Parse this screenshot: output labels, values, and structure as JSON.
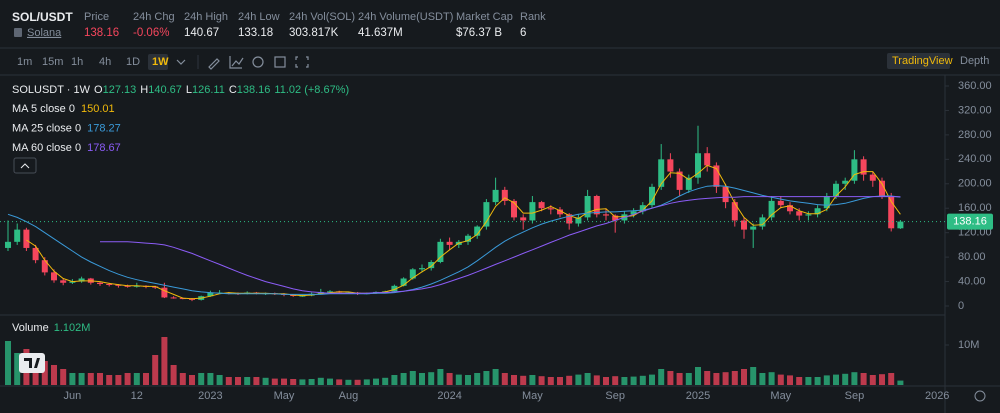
{
  "header": {
    "symbol": "SOL/USDT",
    "name": "Solana",
    "stats": [
      {
        "label": "Price"
      },
      {
        "label": "24h Chg",
        "value": "-0.06%"
      },
      {
        "label": "24h High",
        "value": "140.67"
      },
      {
        "label": "24h Low",
        "value": "133.18"
      },
      {
        "label": "24h Vol(SOL)",
        "value": "303.817K"
      },
      {
        "label": "24h Volume(USDT)",
        "value": "41.637M"
      },
      {
        "label": "Market Cap",
        "value": "$76.37 B"
      },
      {
        "label": "Rank",
        "value": "6"
      }
    ]
  },
  "toolbar": {
    "intervals": [
      "1m",
      "15m",
      "1h",
      "4h",
      "1D",
      "1W"
    ],
    "active": 5,
    "views": [
      "TradingView",
      "Depth"
    ]
  },
  "chart_data": {
    "type": "candlestick",
    "legend": {
      "symbol": "SOLUSDT · 1W",
      "o": "O",
      "h": "H",
      "l": "L",
      "c": "C",
      "change": "11.02 (+8.67%)",
      "volume": "Volume",
      "volume_value": "1.102M"
    },
    "up_color": "#2ebd85",
    "down_color": "#f6465d",
    "categories": [
      null,
      null,
      null,
      null,
      null,
      null,
      null,
      "Jun",
      null,
      null,
      null,
      null,
      null,
      null,
      "12",
      null,
      null,
      null,
      null,
      null,
      null,
      null,
      "2023",
      null,
      null,
      null,
      null,
      null,
      null,
      null,
      "May",
      null,
      null,
      null,
      null,
      null,
      null,
      "Aug",
      null,
      null,
      null,
      null,
      null,
      null,
      null,
      null,
      null,
      null,
      "2024",
      null,
      null,
      null,
      null,
      null,
      null,
      null,
      null,
      "May",
      null,
      null,
      null,
      null,
      null,
      null,
      null,
      null,
      "Sep",
      null,
      null,
      null,
      null,
      null,
      null,
      null,
      null,
      "2025",
      null,
      null,
      null,
      null,
      null,
      null,
      null,
      null,
      "May",
      null,
      null,
      null,
      null,
      null,
      null,
      null,
      "Sep",
      null,
      null,
      null,
      null,
      null,
      null,
      null,
      null,
      "2026"
    ],
    "open": [
      95,
      105,
      125,
      95,
      75,
      55,
      42,
      38,
      40,
      45,
      38,
      36,
      35,
      33,
      32,
      33,
      32,
      30,
      14,
      13,
      12,
      10,
      16,
      22,
      22,
      21,
      20,
      22,
      20,
      21,
      20,
      18,
      17,
      17,
      20,
      23,
      24,
      22,
      22,
      20,
      21,
      23,
      24,
      33,
      45,
      60,
      62,
      72,
      105,
      100,
      105,
      115,
      130,
      170,
      190,
      172,
      145,
      140,
      170,
      160,
      158,
      150,
      135,
      145,
      180,
      150,
      148,
      140,
      150,
      155,
      165,
      195,
      240,
      220,
      190,
      210,
      250,
      230,
      195,
      170,
      140,
      125,
      130,
      145,
      172,
      165,
      155,
      148,
      150,
      160,
      180,
      200,
      205,
      240,
      215,
      205,
      180,
      127.13,
      null,
      null,
      null,
      null
    ],
    "high": [
      140,
      135,
      128,
      100,
      80,
      60,
      45,
      44,
      48,
      46,
      40,
      38,
      36,
      35,
      38,
      34,
      33,
      38,
      16,
      14,
      13,
      17,
      25,
      26,
      23,
      22,
      24,
      23,
      22,
      22,
      21,
      19,
      18,
      22,
      28,
      26,
      25,
      23,
      23,
      22,
      24,
      25,
      35,
      47,
      62,
      68,
      75,
      110,
      112,
      108,
      118,
      132,
      175,
      210,
      195,
      175,
      150,
      180,
      172,
      165,
      162,
      152,
      150,
      190,
      182,
      160,
      150,
      155,
      160,
      170,
      200,
      265,
      250,
      225,
      215,
      295,
      260,
      235,
      200,
      175,
      145,
      135,
      150,
      180,
      180,
      170,
      160,
      155,
      165,
      185,
      205,
      210,
      255,
      245,
      220,
      210,
      185,
      140.67,
      null,
      null,
      null,
      null
    ],
    "low": [
      90,
      100,
      90,
      70,
      50,
      38,
      34,
      36,
      38,
      35,
      33,
      32,
      30,
      30,
      30,
      29,
      28,
      13,
      12,
      11,
      8,
      9,
      15,
      20,
      19,
      18,
      19,
      19,
      18,
      18,
      16,
      15,
      15,
      16,
      19,
      21,
      20,
      20,
      18,
      19,
      20,
      22,
      23,
      32,
      43,
      55,
      58,
      70,
      92,
      95,
      100,
      110,
      125,
      165,
      165,
      140,
      125,
      135,
      155,
      150,
      145,
      125,
      130,
      140,
      145,
      140,
      120,
      135,
      145,
      150,
      160,
      190,
      210,
      180,
      185,
      200,
      220,
      185,
      160,
      130,
      110,
      95,
      125,
      140,
      160,
      150,
      140,
      140,
      145,
      155,
      175,
      190,
      200,
      205,
      195,
      175,
      122,
      126.11,
      null,
      null,
      null,
      null
    ],
    "close": [
      105,
      125,
      95,
      75,
      55,
      42,
      38,
      40,
      45,
      38,
      36,
      35,
      33,
      32,
      33,
      32,
      30,
      14,
      13,
      12,
      10,
      16,
      22,
      22,
      21,
      20,
      22,
      20,
      21,
      20,
      18,
      17,
      17,
      20,
      23,
      24,
      22,
      22,
      20,
      21,
      23,
      24,
      33,
      45,
      60,
      62,
      72,
      105,
      100,
      105,
      115,
      130,
      170,
      190,
      172,
      145,
      140,
      170,
      160,
      158,
      150,
      135,
      145,
      180,
      150,
      148,
      140,
      150,
      155,
      165,
      195,
      240,
      220,
      190,
      210,
      250,
      230,
      195,
      170,
      140,
      125,
      130,
      145,
      172,
      165,
      155,
      148,
      150,
      160,
      180,
      200,
      205,
      240,
      215,
      205,
      180,
      127.13,
      138.16,
      null,
      null,
      null,
      null
    ],
    "volume": [
      11,
      8,
      9,
      7,
      6,
      5,
      4,
      3,
      3,
      3,
      3,
      2.5,
      2.5,
      3,
      3,
      3,
      7.5,
      12,
      5,
      3,
      2.5,
      3,
      3,
      2.5,
      2,
      2,
      2,
      2,
      1.8,
      1.6,
      1.6,
      1.5,
      1.4,
      1.5,
      1.8,
      1.6,
      1.4,
      1.3,
      1.3,
      1.4,
      1.6,
      1.8,
      2.5,
      3,
      3.5,
      3,
      3.2,
      4,
      3,
      2.6,
      2.5,
      3,
      3.5,
      4,
      3,
      2.5,
      2.3,
      2.5,
      2.2,
      2,
      2,
      2.3,
      2.6,
      3,
      2.4,
      2,
      2.2,
      2,
      2.1,
      2.3,
      2.6,
      4,
      3.5,
      3,
      3,
      4.5,
      3.5,
      3,
      3.2,
      3.5,
      4,
      4.5,
      3,
      3.2,
      2.6,
      2.4,
      2,
      2,
      2,
      2.4,
      2.6,
      2.8,
      3.2,
      3,
      2.5,
      2.7,
      3,
      1.102,
      null,
      null,
      null,
      null
    ],
    "ma": [
      {
        "name": "MA 5 close 0",
        "color": "#f0b90b",
        "values": [
          null,
          null,
          108,
          98,
          75,
          57,
          45,
          40,
          41,
          41,
          40,
          37,
          35,
          33,
          33,
          32,
          32,
          25,
          19,
          13,
          12,
          13,
          16,
          20,
          22,
          21,
          21,
          21,
          21,
          20,
          20,
          18,
          17,
          18,
          20,
          22,
          23,
          23,
          21,
          21,
          21,
          23,
          27,
          34,
          46,
          56,
          65,
          80,
          92,
          103,
          107,
          117,
          138,
          163,
          177,
          169,
          152,
          152,
          157,
          163,
          156,
          148,
          143,
          153,
          158,
          159,
          146,
          146,
          148,
          157,
          172,
          200,
          218,
          217,
          207,
          217,
          230,
          225,
          198,
          168,
          145,
          132,
          133,
          149,
          161,
          164,
          156,
          151,
          151,
          158,
          180,
          195,
          215,
          220,
          220,
          200,
          171,
          150.01,
          null,
          null,
          null,
          null
        ]
      },
      {
        "name": "MA 25 close 0",
        "color": "#3a9ad9",
        "values": [
          150,
          145,
          138,
          130,
          120,
          110,
          100,
          90,
          80,
          72,
          65,
          58,
          52,
          47,
          43,
          40,
          37,
          34,
          31,
          28,
          25,
          23,
          22,
          21,
          20,
          20,
          20,
          20,
          20,
          20,
          19,
          19,
          19,
          19,
          19,
          20,
          20,
          20,
          20,
          20,
          21,
          21,
          22,
          24,
          27,
          31,
          36,
          42,
          49,
          56,
          64,
          74,
          85,
          96,
          106,
          114,
          121,
          128,
          134,
          139,
          143,
          147,
          150,
          152,
          153,
          154,
          154,
          155,
          156,
          157,
          160,
          165,
          172,
          180,
          187,
          192,
          196,
          197,
          196,
          193,
          189,
          185,
          181,
          178,
          175,
          172,
          170,
          168,
          166,
          165,
          166,
          168,
          172,
          176,
          179,
          180,
          180,
          178.27,
          null,
          null,
          null,
          null
        ]
      },
      {
        "name": "MA 60 close 0",
        "color": "#8b5cf6",
        "values": [
          null,
          null,
          null,
          null,
          null,
          null,
          null,
          null,
          null,
          null,
          105,
          105,
          105,
          105,
          104,
          103,
          102,
          100,
          96,
          91,
          86,
          80,
          74,
          68,
          62,
          56,
          50,
          45,
          40,
          36,
          32,
          28,
          25,
          23,
          22,
          21,
          21,
          21,
          21,
          21,
          22,
          22,
          23,
          24,
          26,
          28,
          31,
          35,
          40,
          45,
          50,
          56,
          62,
          68,
          74,
          80,
          86,
          92,
          98,
          104,
          110,
          116,
          121,
          126,
          131,
          135,
          140,
          145,
          150,
          155,
          160,
          164,
          168,
          171,
          173,
          175,
          176,
          177,
          178,
          178,
          179,
          179,
          179,
          179,
          179,
          179,
          179,
          179,
          179,
          179,
          179,
          179,
          179,
          179,
          179,
          179,
          179,
          178.67,
          null,
          null,
          null,
          null
        ]
      }
    ],
    "ylim": [
      0,
      360
    ],
    "yticks": [
      {
        "value": 360,
        "label": "360.00"
      },
      {
        "value": 320,
        "label": "320.00"
      },
      {
        "value": 280,
        "label": "280.00"
      },
      {
        "value": 240,
        "label": "240.00"
      },
      {
        "value": 200,
        "label": "200.00"
      },
      {
        "value": 160,
        "label": "160.00"
      },
      {
        "value": 120,
        "label": "120.00"
      },
      {
        "value": 80,
        "label": "80.00"
      },
      {
        "value": 40,
        "label": "40.00"
      },
      0
    ],
    "volume_ylim": [
      0,
      16.75
    ],
    "volume_yticks": [
      {
        "value": 10,
        "label": "10M"
      }
    ]
  }
}
